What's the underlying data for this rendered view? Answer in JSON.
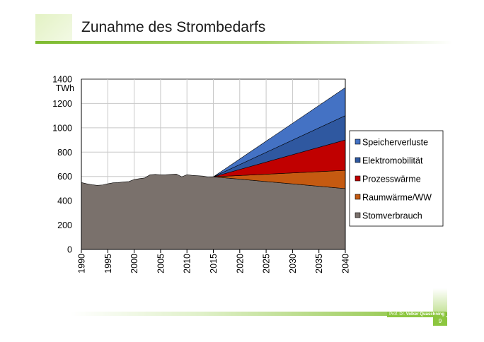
{
  "slide": {
    "title": "Zunahme des Strombedarfs",
    "author_prefix": "Prof. Dr.",
    "author_name": "Volker Quaschning",
    "page_number": "9",
    "accent_color": "#8cc63f"
  },
  "chart_data": {
    "type": "area",
    "title": "",
    "xlabel": "",
    "ylabel": "TWh",
    "xlim": [
      1990,
      2040
    ],
    "ylim": [
      0,
      1400
    ],
    "x_ticks": [
      "1990",
      "1995",
      "2000",
      "2005",
      "2010",
      "2015",
      "2020",
      "2025",
      "2030",
      "2035",
      "2040"
    ],
    "y_ticks": [
      "0",
      "200",
      "400",
      "600",
      "800",
      "1000",
      "1200",
      "1400"
    ],
    "grid": true,
    "stacked": true,
    "legend_position": "right",
    "series": [
      {
        "name": "Stomverbrauch",
        "color": "#7a716c",
        "x": [
          1990,
          1991,
          1992,
          1993,
          1994,
          1995,
          1996,
          1997,
          1998,
          1999,
          2000,
          2001,
          2002,
          2003,
          2004,
          2005,
          2006,
          2007,
          2008,
          2009,
          2010,
          2011,
          2012,
          2013,
          2014,
          2015,
          2040
        ],
        "values": [
          550,
          540,
          532,
          527,
          530,
          540,
          548,
          550,
          555,
          558,
          575,
          582,
          588,
          613,
          617,
          613,
          614,
          617,
          620,
          597,
          614,
          609,
          606,
          603,
          595,
          597,
          500
        ]
      },
      {
        "name": "Raumwärme/WW",
        "color": "#c55a11",
        "x": [
          2015,
          2040
        ],
        "values": [
          0,
          150
        ]
      },
      {
        "name": "Prozesswärme",
        "color": "#c00000",
        "x": [
          2015,
          2040
        ],
        "values": [
          0,
          250
        ]
      },
      {
        "name": "Elektromobilität",
        "color": "#2f58a0",
        "x": [
          2015,
          2040
        ],
        "values": [
          0,
          200
        ]
      },
      {
        "name": "Speicherverluste",
        "color": "#4472c4",
        "x": [
          2015,
          2040
        ],
        "values": [
          0,
          230
        ]
      }
    ],
    "legend_order": [
      "Speicherverluste",
      "Elektromobilität",
      "Prozesswärme",
      "Raumwärme/WW",
      "Stomverbrauch"
    ]
  }
}
